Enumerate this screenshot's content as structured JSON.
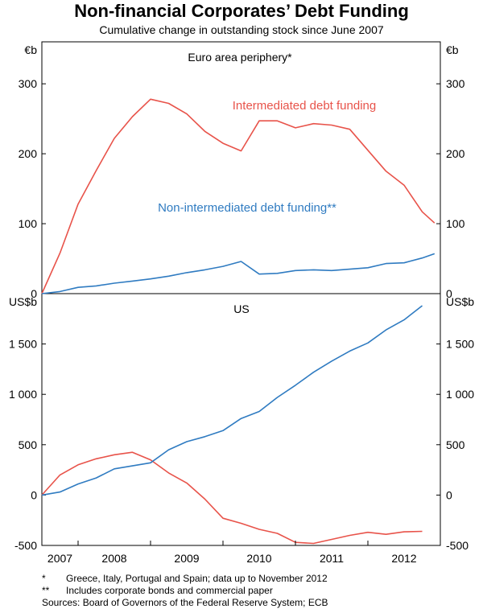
{
  "title": "Non-financial Corporates’ Debt Funding",
  "subtitle": "Cumulative change in outstanding stock since June 2007",
  "colors": {
    "intermediated": "#e8534a",
    "non_intermediated": "#2f7bc1",
    "frame": "#000000"
  },
  "notes": {
    "n1_mark": "*",
    "n1_text": "Greece, Italy, Portugal and Spain; data up to November 2012",
    "n2_mark": "**",
    "n2_text": "Includes corporate bonds and commercial paper",
    "sources": "Sources: Board of Governors of the Federal Reserve System; ECB"
  },
  "chart_data": [
    {
      "type": "line",
      "panel_title": "Euro area periphery*",
      "unit_left": "€b",
      "unit_right": "€b",
      "ylim": [
        0,
        360
      ],
      "yticks": [
        0,
        100,
        200,
        300
      ],
      "ytick_labels": [
        "0",
        "100",
        "200",
        "300"
      ],
      "grid": false,
      "series": [
        {
          "name": "Intermediated debt funding",
          "color": "#e8534a",
          "x": [
            2007.5,
            2007.75,
            2008.0,
            2008.25,
            2008.5,
            2008.75,
            2009.0,
            2009.25,
            2009.5,
            2009.75,
            2010.0,
            2010.25,
            2010.5,
            2010.75,
            2011.0,
            2011.25,
            2011.5,
            2011.75,
            2012.0,
            2012.25,
            2012.5,
            2012.75,
            2012.92
          ],
          "y": [
            0,
            58,
            128,
            176,
            222,
            253,
            278,
            272,
            257,
            232,
            215,
            204,
            247,
            247,
            237,
            243,
            241,
            235,
            205,
            175,
            155,
            117,
            101
          ]
        },
        {
          "name": "Non-intermediated debt funding**",
          "color": "#2f7bc1",
          "x": [
            2007.5,
            2007.75,
            2008.0,
            2008.25,
            2008.5,
            2008.75,
            2009.0,
            2009.25,
            2009.5,
            2009.75,
            2010.0,
            2010.25,
            2010.5,
            2010.75,
            2011.0,
            2011.25,
            2011.5,
            2011.75,
            2012.0,
            2012.25,
            2012.5,
            2012.75,
            2012.92
          ],
          "y": [
            0,
            3,
            9,
            11,
            15,
            18,
            21,
            25,
            30,
            34,
            39,
            46,
            28,
            29,
            33,
            34,
            33,
            35,
            37,
            43,
            44,
            51,
            57
          ]
        }
      ]
    },
    {
      "type": "line",
      "panel_title": "US",
      "unit_left": "US$b",
      "unit_right": "US$b",
      "ylim": [
        -500,
        2000
      ],
      "yticks": [
        -500,
        0,
        500,
        1000,
        1500
      ],
      "ytick_labels": [
        "-500",
        "0",
        "500",
        "1 000",
        "1 500"
      ],
      "grid": false,
      "series": [
        {
          "name": "Intermediated debt funding",
          "color": "#e8534a",
          "x": [
            2007.5,
            2007.75,
            2008.0,
            2008.25,
            2008.5,
            2008.75,
            2009.0,
            2009.25,
            2009.5,
            2009.75,
            2010.0,
            2010.25,
            2010.5,
            2010.75,
            2011.0,
            2011.25,
            2011.5,
            2011.75,
            2012.0,
            2012.25,
            2012.5,
            2012.75
          ],
          "y": [
            0,
            200,
            300,
            360,
            400,
            425,
            350,
            220,
            120,
            -40,
            -230,
            -280,
            -340,
            -380,
            -470,
            -480,
            -440,
            -400,
            -370,
            -390,
            -365,
            -360
          ]
        },
        {
          "name": "Non-intermediated debt funding**",
          "color": "#2f7bc1",
          "x": [
            2007.5,
            2007.75,
            2008.0,
            2008.25,
            2008.5,
            2008.75,
            2009.0,
            2009.25,
            2009.5,
            2009.75,
            2010.0,
            2010.25,
            2010.5,
            2010.75,
            2011.0,
            2011.25,
            2011.5,
            2011.75,
            2012.0,
            2012.25,
            2012.5,
            2012.75
          ],
          "y": [
            0,
            30,
            110,
            170,
            260,
            290,
            320,
            450,
            530,
            580,
            640,
            760,
            830,
            970,
            1090,
            1220,
            1330,
            1430,
            1510,
            1640,
            1740,
            1880
          ]
        }
      ]
    }
  ],
  "x_axis": {
    "range": [
      2007.5,
      2013.0
    ],
    "year_boundaries": [
      2008,
      2009,
      2010,
      2011,
      2012
    ],
    "labels": [
      {
        "text": "2007",
        "x": 2007.75
      },
      {
        "text": "2008",
        "x": 2008.5
      },
      {
        "text": "2009",
        "x": 2009.5
      },
      {
        "text": "2010",
        "x": 2010.5
      },
      {
        "text": "2011",
        "x": 2011.5
      },
      {
        "text": "2012",
        "x": 2012.5
      }
    ]
  },
  "annotations": [
    {
      "text": "Intermediated debt funding",
      "panel": 0,
      "color": "#e8534a"
    },
    {
      "text": "Non-intermediated debt funding**",
      "panel": 0,
      "color": "#2f7bc1"
    }
  ]
}
